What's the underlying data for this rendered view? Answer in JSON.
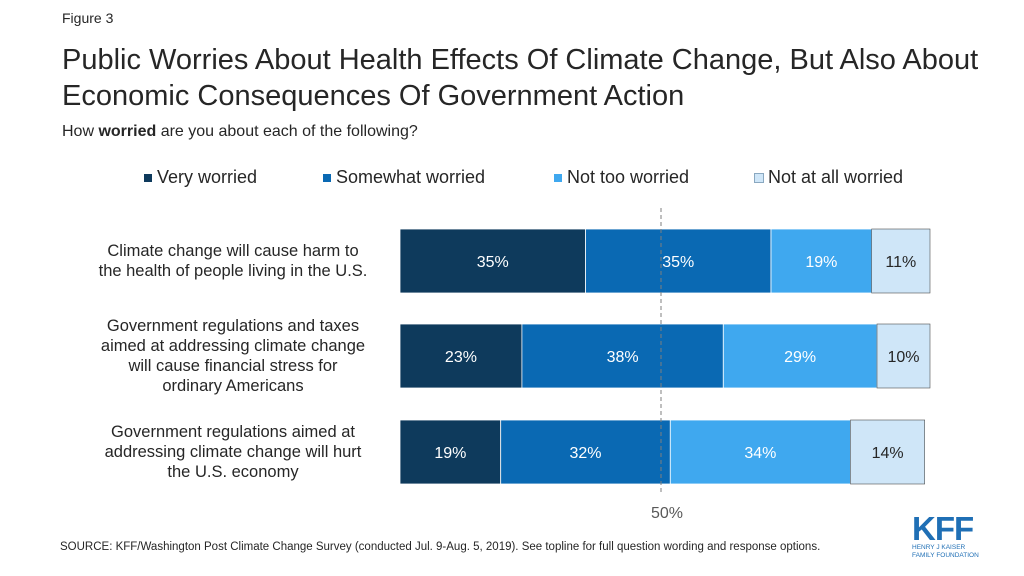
{
  "figure_label": "Figure 3",
  "title": "Public Worries About Health Effects Of Climate Change, But Also About Economic Consequences Of Government Action",
  "subtitle_pre": "How ",
  "subtitle_bold": "worried",
  "subtitle_post": " are you about each of the following?",
  "source": "SOURCE: KFF/Washington Post Climate Change Survey (conducted Jul. 9-Aug. 5, 2019). See topline for full question wording and response options.",
  "logo": {
    "main": "KFF",
    "line1": "HENRY J KAISER",
    "line2": "FAMILY FOUNDATION"
  },
  "chart_data": {
    "type": "bar",
    "orientation": "horizontal",
    "stacked": true,
    "categories": [
      "Climate change will cause harm to the health of people living in the U.S.",
      "Government regulations and taxes aimed at addressing climate change will cause financial stress for ordinary Americans",
      "Government regulations aimed at addressing climate change will hurt the U.S. economy"
    ],
    "category_lines": [
      [
        "Climate change will cause harm to",
        "the health of people living in the U.S."
      ],
      [
        "Government regulations and taxes",
        "aimed at addressing climate change",
        "will cause financial stress for",
        "ordinary Americans"
      ],
      [
        "Government regulations aimed at",
        "addressing climate change will hurt",
        "the U.S. economy"
      ]
    ],
    "series": [
      {
        "name": "Very worried",
        "color": "#0e3a5c",
        "values": [
          35,
          23,
          19
        ],
        "labels": [
          "35%",
          "23%",
          "19%"
        ]
      },
      {
        "name": "Somewhat worried",
        "color": "#0a69b3",
        "values": [
          35,
          38,
          32
        ],
        "labels": [
          "35%",
          "38%",
          "32%"
        ]
      },
      {
        "name": "Not too worried",
        "color": "#3fa8ef",
        "values": [
          19,
          29,
          34
        ],
        "labels": [
          "19%",
          "29%",
          "34%"
        ]
      },
      {
        "name": "Not at all worried",
        "color": "#cfe6f8",
        "values": [
          11,
          10,
          14
        ],
        "labels": [
          "11%",
          "10%",
          "14%"
        ]
      }
    ],
    "reference_line": {
      "value": 50,
      "label": "50%"
    },
    "xlim": [
      0,
      100
    ],
    "grid": false,
    "legend": "top"
  }
}
